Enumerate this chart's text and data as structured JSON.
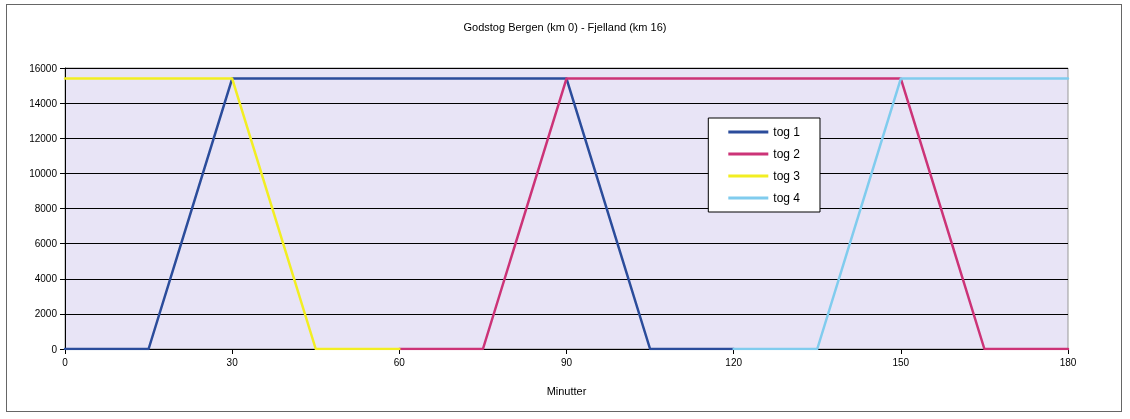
{
  "chart_data": {
    "type": "line",
    "title": "Godstog Bergen (km 0) - Fjelland (km 16)",
    "xlabel": "Minutter",
    "series": [
      {
        "name": "tog 1",
        "color": "#2b4c9b",
        "x": [
          0,
          15,
          30,
          90,
          105,
          120
        ],
        "values": [
          0,
          0,
          15400,
          15400,
          0,
          0
        ]
      },
      {
        "name": "tog 2",
        "color": "#cc3377",
        "x": [
          60,
          75,
          90,
          150,
          165,
          180
        ],
        "values": [
          0,
          0,
          15400,
          15400,
          0,
          0
        ]
      },
      {
        "name": "tog 3",
        "color": "#f2ee22",
        "x": [
          0,
          30,
          45,
          60
        ],
        "values": [
          15400,
          15400,
          0,
          0
        ]
      },
      {
        "name": "tog 4",
        "color": "#80ccee",
        "x": [
          120,
          135,
          150,
          180
        ],
        "values": [
          0,
          0,
          15400,
          15400
        ]
      }
    ],
    "xlim": [
      0,
      180
    ],
    "xticks": [
      0,
      30,
      60,
      90,
      120,
      150,
      180
    ],
    "ylim": [
      0,
      16000
    ],
    "yticks": [
      0,
      2000,
      4000,
      6000,
      8000,
      10000,
      12000,
      14000,
      16000
    ],
    "grid": "y",
    "legend": "right",
    "marker": "none",
    "line_style": "solid"
  }
}
